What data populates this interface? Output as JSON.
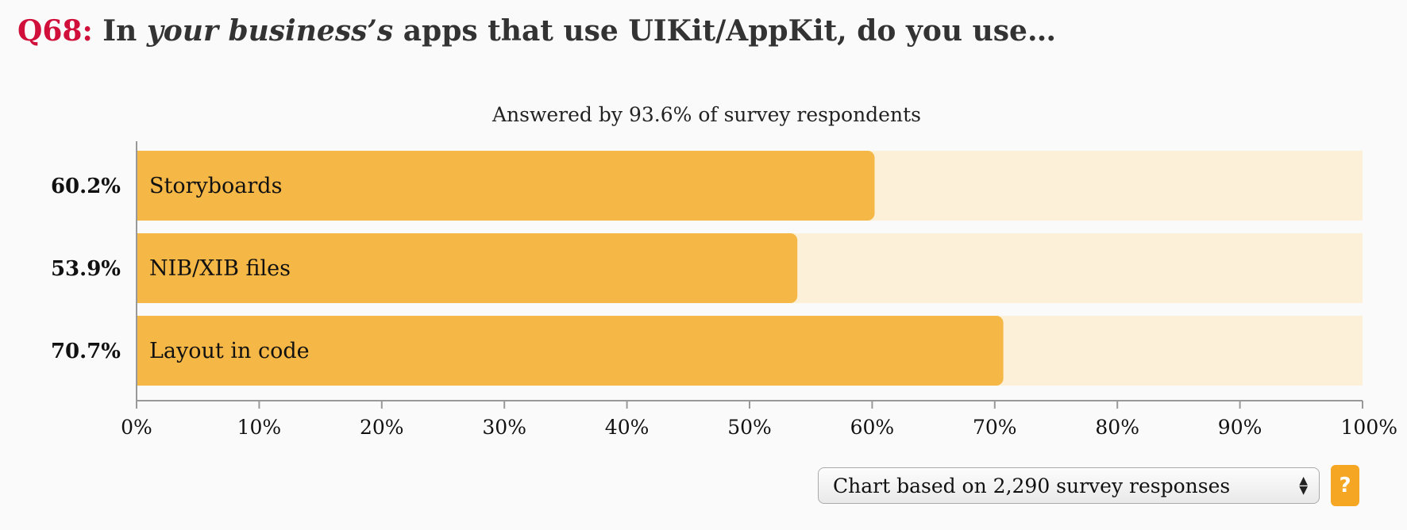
{
  "title": {
    "qnum": "Q68:",
    "pre": " In ",
    "emph": "your business’s",
    "post": " apps that use UIKit/AppKit, do you use…"
  },
  "chart_data": {
    "type": "bar",
    "orientation": "horizontal",
    "subtitle": "Answered by 93.6% of survey respondents",
    "categories": [
      "Storyboards",
      "NIB/XIB files",
      "Layout in code"
    ],
    "values": [
      60.2,
      53.9,
      70.7
    ],
    "value_labels": [
      "60.2%",
      "53.9%",
      "70.7%"
    ],
    "xlim": [
      0,
      100
    ],
    "xticks": [
      "0%",
      "10%",
      "20%",
      "30%",
      "40%",
      "50%",
      "60%",
      "70%",
      "80%",
      "90%",
      "100%"
    ],
    "grid": false,
    "colors": {
      "bar": "#f5b745",
      "track": "#fdf0d8",
      "axis": "#999999"
    }
  },
  "footer": {
    "select_value": "Chart based on 2,290 survey responses",
    "help_label": "?"
  },
  "colors": {
    "accent": "#d0103a",
    "help": "#f5a623"
  }
}
